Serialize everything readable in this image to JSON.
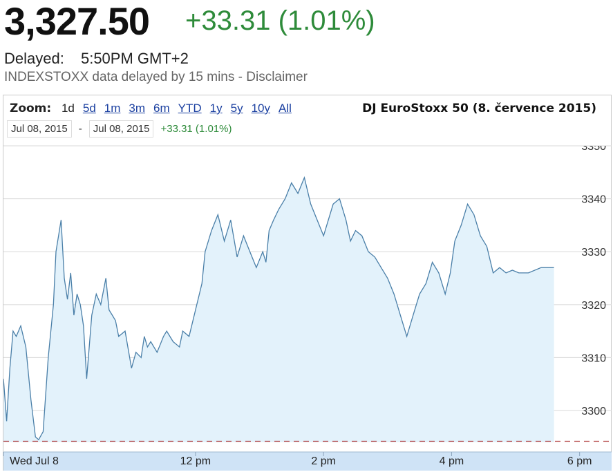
{
  "header": {
    "price": "3,327.50",
    "change": "+33.31 (1.01%)",
    "delayed_label": "Delayed:",
    "delayed_time": "5:50PM GMT+2",
    "disclaimer": "INDEXSTOXX data delayed by 15 mins - Disclaimer"
  },
  "zoom": {
    "label": "Zoom:",
    "options": [
      "1d",
      "5d",
      "1m",
      "3m",
      "6m",
      "YTD",
      "1y",
      "5y",
      "10y",
      "All"
    ],
    "active": "1d"
  },
  "range": {
    "from": "Jul 08, 2015",
    "separator": "-",
    "to": "Jul 08, 2015",
    "change": "+33.31 (1.01%)"
  },
  "colors": {
    "positive": "#2e8b3a",
    "line": "#4a7fa8",
    "fill": "#e3f2fb",
    "baseline": "#b03a3a",
    "axis_band": "#cfe3f6"
  },
  "chart_data": {
    "type": "area",
    "title": "DJ EuroStoxx 50 (8. července 2015)",
    "xlabel": "",
    "ylabel": "",
    "ylim": [
      3294,
      3350
    ],
    "yticks": [
      3300,
      3310,
      3320,
      3330,
      3340,
      3350
    ],
    "ytick_labels": [
      "3300",
      "3310",
      "3320",
      "3330",
      "3340",
      "3350"
    ],
    "xlim": [
      9.0,
      18.5
    ],
    "xticks": [
      9.0,
      12.0,
      14.0,
      16.0,
      18.0
    ],
    "xtick_labels": [
      "Wed Jul 8",
      "12 pm",
      "2 pm",
      "4 pm",
      "6 pm"
    ],
    "baseline_value": 3294.2,
    "series": [
      {
        "values_x": [
          9.0,
          9.05,
          9.1,
          9.15,
          9.2,
          9.27,
          9.35,
          9.43,
          9.5,
          9.55,
          9.62,
          9.7,
          9.78,
          9.82,
          9.9,
          9.95,
          10.0,
          10.05,
          10.1,
          10.15,
          10.2,
          10.25,
          10.3,
          10.38,
          10.45,
          10.52,
          10.6,
          10.65,
          10.7,
          10.75,
          10.8,
          10.9,
          11.0,
          11.07,
          11.15,
          11.2,
          11.25,
          11.3,
          11.4,
          11.5,
          11.55,
          11.65,
          11.75,
          11.8,
          11.9,
          12.0,
          12.1,
          12.15,
          12.25,
          12.35,
          12.45,
          12.55,
          12.65,
          12.75,
          12.85,
          12.95,
          13.05,
          13.1,
          13.15,
          13.22,
          13.3,
          13.4,
          13.5,
          13.6,
          13.7,
          13.8,
          13.9,
          14.0,
          14.05,
          14.15,
          14.25,
          14.35,
          14.42,
          14.5,
          14.6,
          14.7,
          14.8,
          14.9,
          15.0,
          15.1,
          15.2,
          15.3,
          15.4,
          15.5,
          15.6,
          15.7,
          15.8,
          15.9,
          15.98,
          16.05,
          16.15,
          16.25,
          16.35,
          16.45,
          16.55,
          16.65,
          16.75,
          16.85,
          16.95,
          17.05,
          17.1,
          17.2,
          17.4,
          17.6
        ],
        "values": [
          3306,
          3298,
          3308,
          3315,
          3314,
          3316,
          3312,
          3302,
          3295,
          3294.5,
          3296,
          3310,
          3320,
          3330,
          3336,
          3325,
          3321,
          3326,
          3318,
          3322,
          3320,
          3316,
          3306,
          3318,
          3322,
          3320,
          3325,
          3319,
          3318,
          3317,
          3314,
          3315,
          3308,
          3311,
          3310,
          3314,
          3312,
          3313,
          3311,
          3314,
          3315,
          3313,
          3312,
          3315,
          3314,
          3319,
          3324,
          3330,
          3334,
          3337,
          3332,
          3336,
          3329,
          3333,
          3330,
          3327,
          3330,
          3328,
          3334,
          3336,
          3338,
          3340,
          3343,
          3341,
          3344,
          3339,
          3336,
          3333,
          3335,
          3339,
          3340,
          3336,
          3332,
          3334,
          3333,
          3330,
          3329,
          3327,
          3325,
          3322,
          3318,
          3314,
          3318,
          3322,
          3324,
          3328,
          3326,
          3322,
          3326,
          3332,
          3335,
          3339,
          3337,
          3333,
          3331,
          3326,
          3327,
          3326,
          3326.5,
          3326,
          3326,
          3326,
          3327,
          3327
        ]
      }
    ],
    "grid": true
  }
}
